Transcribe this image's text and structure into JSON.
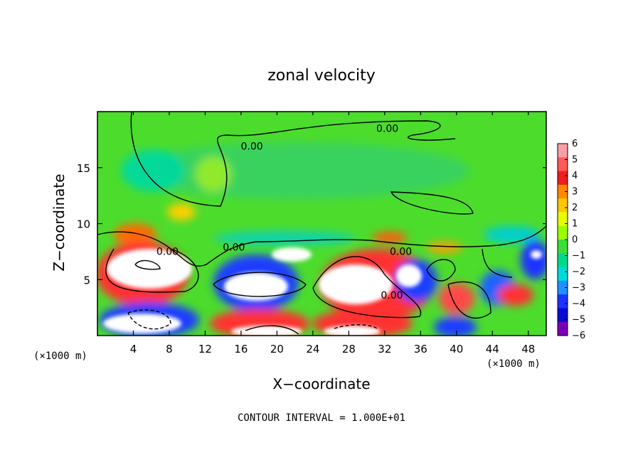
{
  "chart_data": {
    "type": "heatmap",
    "title": "zonal velocity",
    "xlabel": "X−coordinate",
    "ylabel": "Z−coordinate",
    "x_unit_left": "(×1000 m)",
    "x_unit_right": "(×1000 m)",
    "footer": "CONTOUR INTERVAL = 1.000E+01",
    "xlim": [
      0,
      50
    ],
    "ylim": [
      0,
      20
    ],
    "xticks": [
      4,
      8,
      12,
      16,
      20,
      24,
      28,
      32,
      36,
      40,
      44,
      48
    ],
    "yticks": [
      5,
      10,
      15
    ],
    "colorbar": {
      "range": [
        -6,
        6
      ],
      "ticks": [
        6,
        5,
        4,
        3,
        2,
        1,
        0,
        -1,
        -2,
        -3,
        -4,
        -5,
        -6
      ],
      "colors": [
        "#f5a0a8",
        "#ff5a5a",
        "#ee1f1f",
        "#ff8a00",
        "#ffc800",
        "#e6ff00",
        "#9bff00",
        "#3cdc3c",
        "#00d98c",
        "#00d9d9",
        "#1e90ff",
        "#1e32ff",
        "#0a0ad0",
        "#7800b4"
      ]
    },
    "contour_labels": [
      {
        "text": "0.00",
        "x": 17.2,
        "y": 16.6
      },
      {
        "text": "0.00",
        "x": 32.3,
        "y": 18.2
      },
      {
        "text": "0.00",
        "x": 7.8,
        "y": 7.2
      },
      {
        "text": "0.00",
        "x": 15.2,
        "y": 7.6
      },
      {
        "text": "0.00",
        "x": 33.8,
        "y": 7.2
      },
      {
        "text": "0.00",
        "x": 32.8,
        "y": 3.3
      }
    ]
  }
}
